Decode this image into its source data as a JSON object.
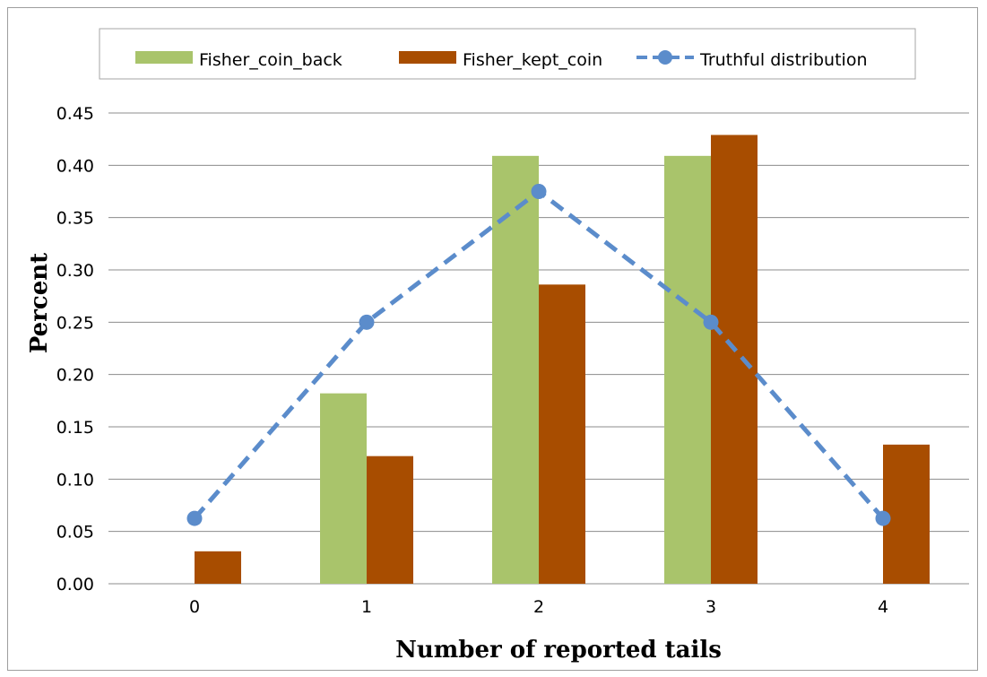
{
  "chart_data": {
    "type": "bar",
    "title": "",
    "xlabel": "Number of reported tails",
    "ylabel": "Percent",
    "categories": [
      "0",
      "1",
      "2",
      "3",
      "4"
    ],
    "ylim": [
      0,
      0.45
    ],
    "yticks": [
      "0.00",
      "0.05",
      "0.10",
      "0.15",
      "0.20",
      "0.25",
      "0.30",
      "0.35",
      "0.40",
      "0.45"
    ],
    "grid": "horizontal",
    "legend_position": "top",
    "series": [
      {
        "name": "Fisher_coin_back",
        "kind": "bar",
        "color": "#a9c46b",
        "values": [
          0,
          0.182,
          0.409,
          0.409,
          0
        ]
      },
      {
        "name": "Fisher_kept_coin",
        "kind": "bar",
        "color": "#a84d00",
        "values": [
          0.031,
          0.122,
          0.286,
          0.429,
          0.133
        ]
      },
      {
        "name": "Truthful distribution",
        "kind": "line",
        "style": "dashed",
        "marker": "circle",
        "color": "#5b8ccb",
        "values": [
          0.0625,
          0.25,
          0.375,
          0.25,
          0.0625
        ]
      }
    ]
  }
}
